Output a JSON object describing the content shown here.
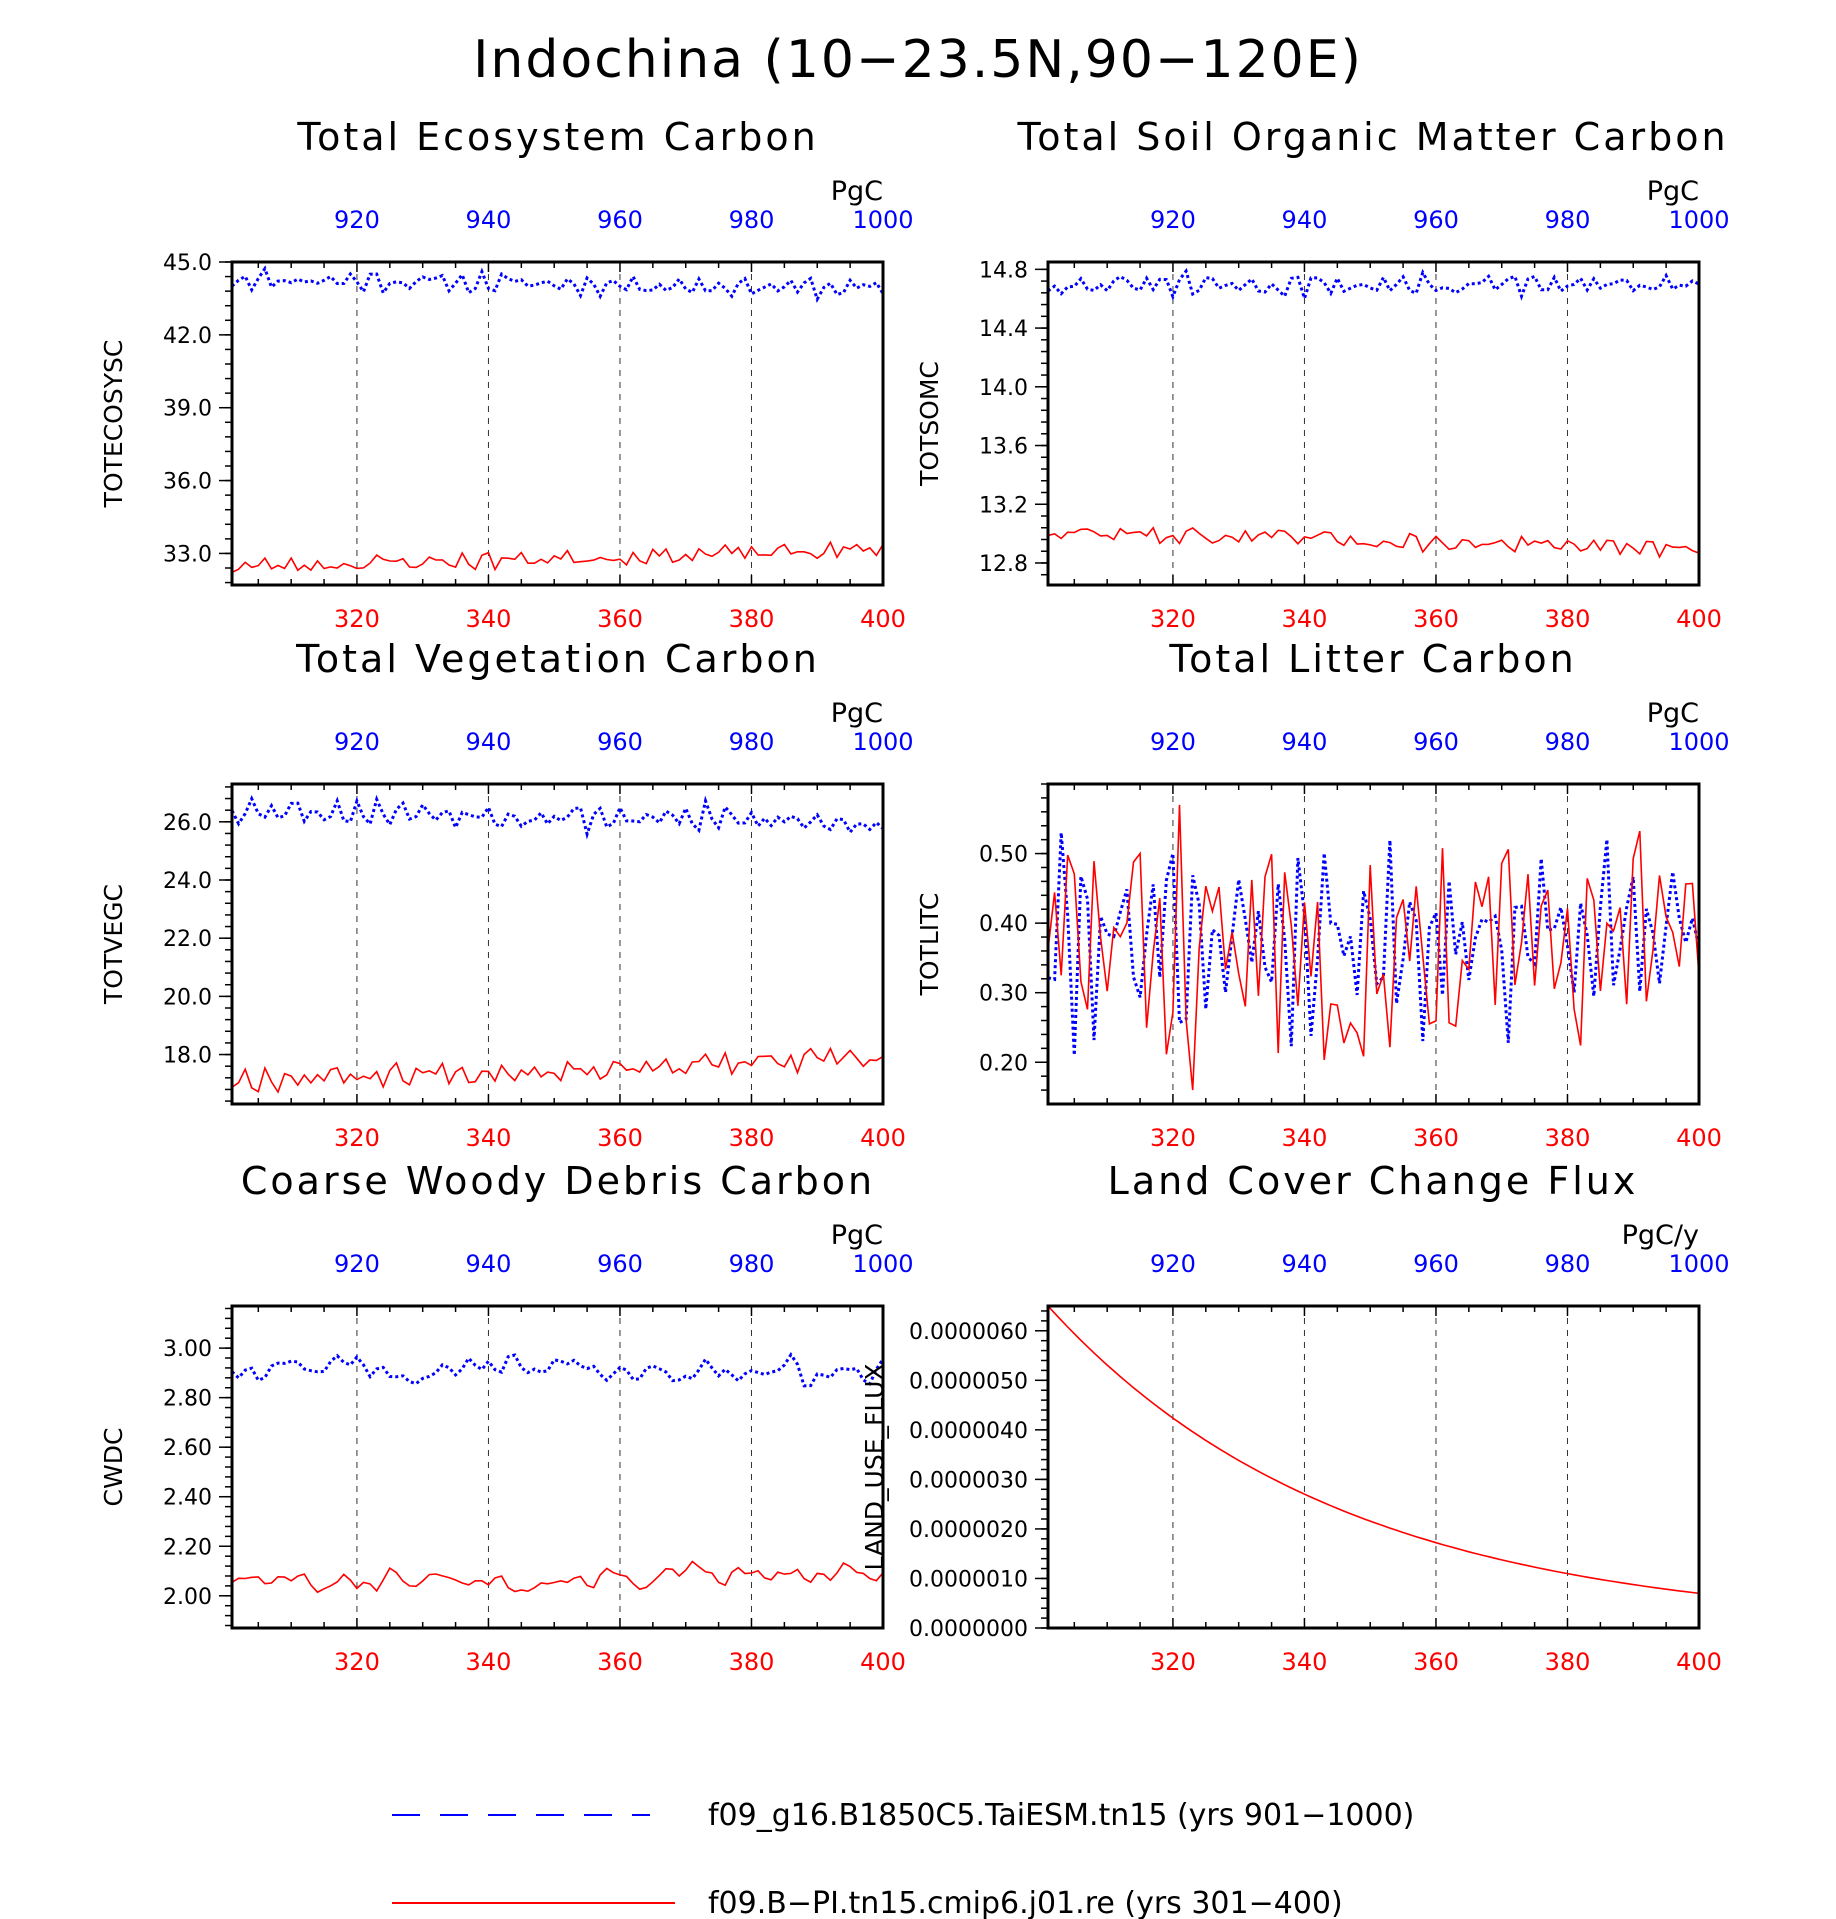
{
  "title": "Indochina (10−23.5N,90−120E)",
  "colors": {
    "series_a": "#0000ff",
    "series_b": "#ff0000",
    "axis": "#000000"
  },
  "legend": [
    {
      "label": "f09_g16.B1850C5.TaiESM.tn15 (yrs 901−1000)",
      "color": "#0000ff",
      "style": "dashed"
    },
    {
      "label": "f09.B−PI.tn15.cmip6.j01.re (yrs 301−400)",
      "color": "#ff0000",
      "style": "solid"
    }
  ],
  "chart_data": [
    {
      "type": "line",
      "title": "Total Ecosystem Carbon",
      "ylabel": "TOTECOSYSC",
      "units": "PgC",
      "ylim": [
        31.7,
        45.0
      ],
      "yticks": [
        "33.0",
        "36.0",
        "39.0",
        "42.0",
        "45.0"
      ],
      "x_bottom": {
        "range": [
          301,
          400
        ],
        "ticks": [
          "320",
          "340",
          "360",
          "380",
          "400"
        ]
      },
      "x_top": {
        "range": [
          901,
          1000
        ],
        "ticks": [
          "920",
          "940",
          "960",
          "980",
          "1000"
        ]
      },
      "series": [
        {
          "years": "901-1000",
          "mean": 44.1,
          "amplitude": 0.28,
          "trend": -0.4,
          "noise": 0.25,
          "seed": 11
        },
        {
          "years": "301-400",
          "mean": 32.8,
          "amplitude": 0.15,
          "trend": 0.7,
          "noise": 0.3,
          "seed": 23
        }
      ]
    },
    {
      "type": "line",
      "title": "Total Soil Organic Matter Carbon",
      "ylabel": "TOTSOMC",
      "units": "PgC",
      "ylim": [
        12.65,
        14.85
      ],
      "yticks": [
        "12.8",
        "13.2",
        "13.6",
        "14.0",
        "14.4",
        "14.8"
      ],
      "x_bottom": {
        "range": [
          301,
          400
        ],
        "ticks": [
          "320",
          "340",
          "360",
          "380",
          "400"
        ]
      },
      "x_top": {
        "range": [
          901,
          1000
        ],
        "ticks": [
          "920",
          "940",
          "960",
          "980",
          "1000"
        ]
      },
      "series": [
        {
          "years": "901-1000",
          "mean": 14.69,
          "amplitude": 0.05,
          "trend": 0.0,
          "noise": 0.05,
          "seed": 31
        },
        {
          "years": "301-400",
          "mean": 12.95,
          "amplitude": 0.02,
          "trend": -0.12,
          "noise": 0.05,
          "seed": 47
        }
      ]
    },
    {
      "type": "line",
      "title": "Total Vegetation Carbon",
      "ylabel": "TOTVEGC",
      "units": "PgC",
      "ylim": [
        16.3,
        27.3
      ],
      "yticks": [
        "18.0",
        "20.0",
        "22.0",
        "24.0",
        "26.0"
      ],
      "x_bottom": {
        "range": [
          301,
          400
        ],
        "ticks": [
          "320",
          "340",
          "360",
          "380",
          "400"
        ]
      },
      "x_top": {
        "range": [
          901,
          1000
        ],
        "ticks": [
          "920",
          "940",
          "960",
          "980",
          "1000"
        ]
      },
      "series": [
        {
          "years": "901-1000",
          "mean": 26.2,
          "amplitude": 0.35,
          "trend": -0.5,
          "noise": 0.3,
          "seed": 53
        },
        {
          "years": "301-400",
          "mean": 17.5,
          "amplitude": 0.25,
          "trend": 0.7,
          "noise": 0.3,
          "seed": 67
        }
      ]
    },
    {
      "type": "line",
      "title": "Total Litter Carbon",
      "ylabel": "TOTLITC",
      "units": "PgC",
      "ylim": [
        0.14,
        0.6
      ],
      "yticks": [
        "0.20",
        "0.30",
        "0.40",
        "0.50"
      ],
      "x_bottom": {
        "range": [
          301,
          400
        ],
        "ticks": [
          "320",
          "340",
          "360",
          "380",
          "400"
        ]
      },
      "x_top": {
        "range": [
          901,
          1000
        ],
        "ticks": [
          "920",
          "940",
          "960",
          "980",
          "1000"
        ]
      },
      "series": [
        {
          "years": "901-1000",
          "mean": 0.33,
          "amplitude": 0.09,
          "trend": 0.0,
          "noise": 0.06,
          "seed": 79,
          "range": [
            0.21,
            0.53
          ]
        },
        {
          "years": "301-400",
          "mean": 0.31,
          "amplitude": 0.06,
          "trend": 0.0,
          "noise": 0.08,
          "seed": 83,
          "range": [
            0.16,
            0.57
          ]
        }
      ]
    },
    {
      "type": "line",
      "title": "Coarse Woody Debris Carbon",
      "ylabel": "CWDC",
      "units": "PgC",
      "ylim": [
        1.87,
        3.17
      ],
      "yticks": [
        "2.00",
        "2.20",
        "2.40",
        "2.60",
        "2.80",
        "3.00"
      ],
      "x_bottom": {
        "range": [
          301,
          400
        ],
        "ticks": [
          "320",
          "340",
          "360",
          "380",
          "400"
        ]
      },
      "x_top": {
        "range": [
          901,
          1000
        ],
        "ticks": [
          "920",
          "940",
          "960",
          "980",
          "1000"
        ]
      },
      "series": [
        {
          "years": "901-1000",
          "mean": 2.92,
          "amplitude": 0.07,
          "trend": -0.05,
          "noise": 0.07,
          "seed": 97,
          "smooth": true
        },
        {
          "years": "301-400",
          "mean": 2.07,
          "amplitude": 0.05,
          "trend": 0.02,
          "noise": 0.06,
          "seed": 101,
          "smooth": true
        }
      ]
    },
    {
      "type": "line",
      "title": "Land Cover Change Flux",
      "ylabel": "LAND_USE_FLUX",
      "units": "PgC/y",
      "ylim": [
        0.0,
        6.5e-06
      ],
      "yticks": [
        "0.0000000",
        "0.0000010",
        "0.0000020",
        "0.0000030",
        "0.0000040",
        "0.0000050",
        "0.0000060"
      ],
      "x_bottom": {
        "range": [
          301,
          400
        ],
        "ticks": [
          "320",
          "340",
          "360",
          "380",
          "400"
        ]
      },
      "x_top": {
        "range": [
          901,
          1000
        ],
        "ticks": [
          "920",
          "940",
          "960",
          "980",
          "1000"
        ]
      },
      "series": [
        {
          "years": "301-400",
          "start": 6.5e-06,
          "end": 7e-07,
          "shape": "exponential-decay"
        }
      ]
    }
  ]
}
